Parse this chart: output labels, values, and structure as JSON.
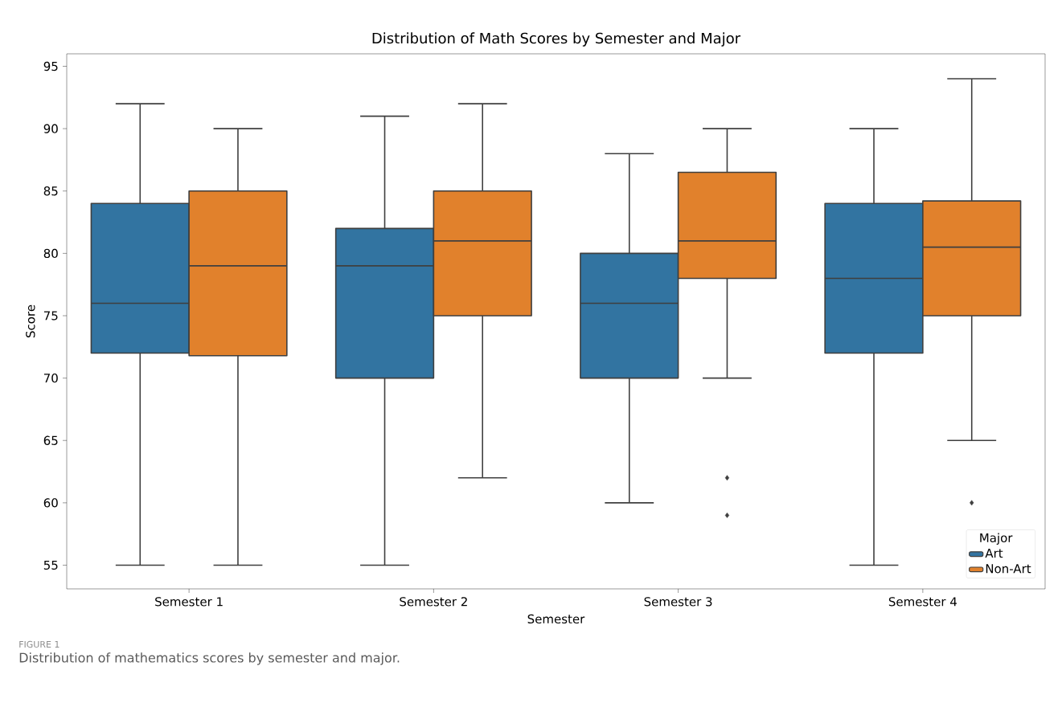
{
  "chart_data": {
    "type": "box",
    "title": "Distribution of Math Scores by Semester and Major",
    "xlabel": "Semester",
    "ylabel": "Score",
    "legend_title": "Major",
    "legend": "bottom right",
    "marker": "diamond",
    "categories": [
      "Semester 1",
      "Semester 2",
      "Semester 3",
      "Semester 4"
    ],
    "series": [
      {
        "name": "Art",
        "color": "#3274a1",
        "boxes": [
          {
            "low": 55,
            "q1": 72,
            "median": 76,
            "q3": 84,
            "high": 92
          },
          {
            "low": 55,
            "q1": 70,
            "median": 79,
            "q3": 82,
            "high": 91
          },
          {
            "low": 60,
            "q1": 70,
            "median": 76,
            "q3": 80,
            "high": 88
          },
          {
            "low": 55,
            "q1": 72,
            "median": 78,
            "q3": 84,
            "high": 90
          }
        ]
      },
      {
        "name": "Non-Art",
        "color": "#e1812c",
        "boxes": [
          {
            "low": 55,
            "q1": 71.8,
            "median": 79,
            "q3": 85,
            "high": 90
          },
          {
            "low": 62,
            "q1": 75,
            "median": 81,
            "q3": 85,
            "high": 92
          },
          {
            "low": 70,
            "q1": 78,
            "median": 81,
            "q3": 86.5,
            "high": 90,
            "outliers": [
              62,
              59
            ]
          },
          {
            "low": 65,
            "q1": 75,
            "median": 80.5,
            "q3": 84.2,
            "high": 94,
            "outliers": [
              60
            ]
          }
        ]
      }
    ],
    "ylim": [
      53.1,
      96.0
    ],
    "yticks": [
      55,
      60,
      65,
      70,
      75,
      80,
      85,
      90,
      95
    ],
    "annotations": [
      "FIGURE 1",
      "Distribution of mathematics scores by semester and major."
    ]
  }
}
